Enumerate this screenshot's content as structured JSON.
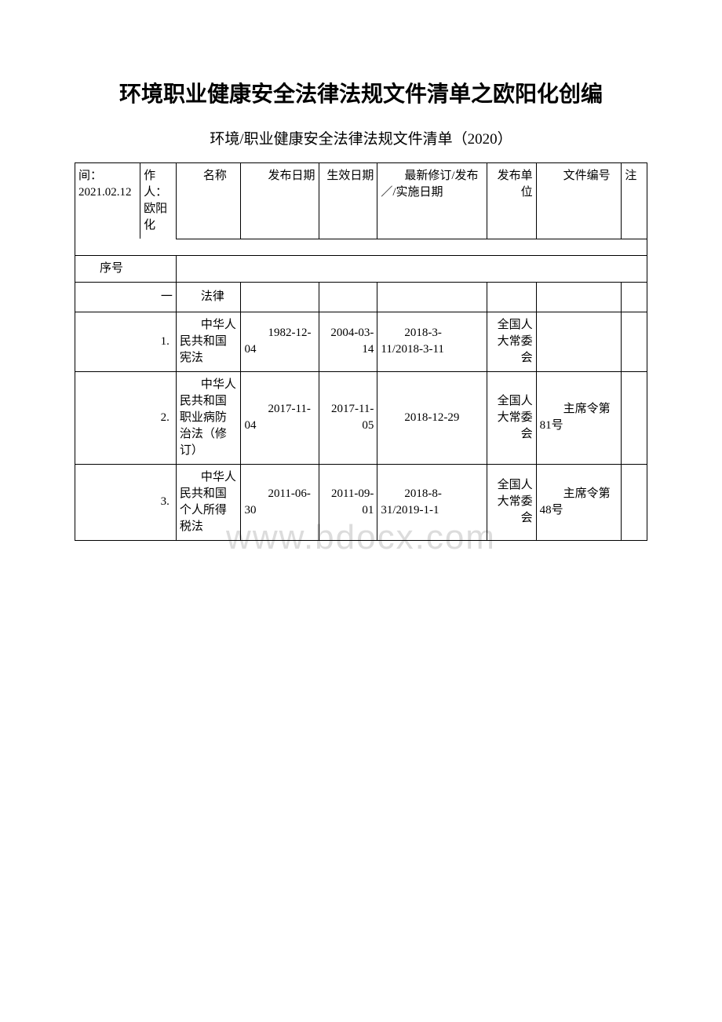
{
  "title": "环境职业健康安全法律法规文件清单之欧阳化创编",
  "subtitle": "环境/职业健康安全法律法规文件清单（2020）",
  "watermark": "www.bdocx.com",
  "header": {
    "col0": "间：2021.02.12",
    "col1": "作人：欧阳化",
    "col2": "名称",
    "col3": "发布日期",
    "col4": "生效日期",
    "col5": "最新修订/发布／/实施日期",
    "col6": "发布单位",
    "col7": "文件编号",
    "col8": "注"
  },
  "serialLabel": "序号",
  "section": {
    "num": "一",
    "label": "法律"
  },
  "rows": [
    {
      "num": "1.",
      "name": "中华人民共和国宪法",
      "pubDate": "1982-12-04",
      "effDate": "2004-03-14",
      "revDate": "2018-3-11/2018-3-11",
      "unit": "全国人大常委会",
      "code": ""
    },
    {
      "num": "2.",
      "name": "中华人民共和国职业病防治法（修订）",
      "pubDate": "2017-11-04",
      "effDate": "2017-11-05",
      "revDate": "2018-12-29",
      "unit": "全国人大常委会",
      "code": "主席令第81号"
    },
    {
      "num": "3.",
      "name": "中华人民共和国个人所得税法",
      "pubDate": "2011-06-30",
      "effDate": "2011-09-01",
      "revDate": "2018-8-31/2019-1-1",
      "unit": "全国人大常委会",
      "code": "主席令第48号"
    }
  ]
}
